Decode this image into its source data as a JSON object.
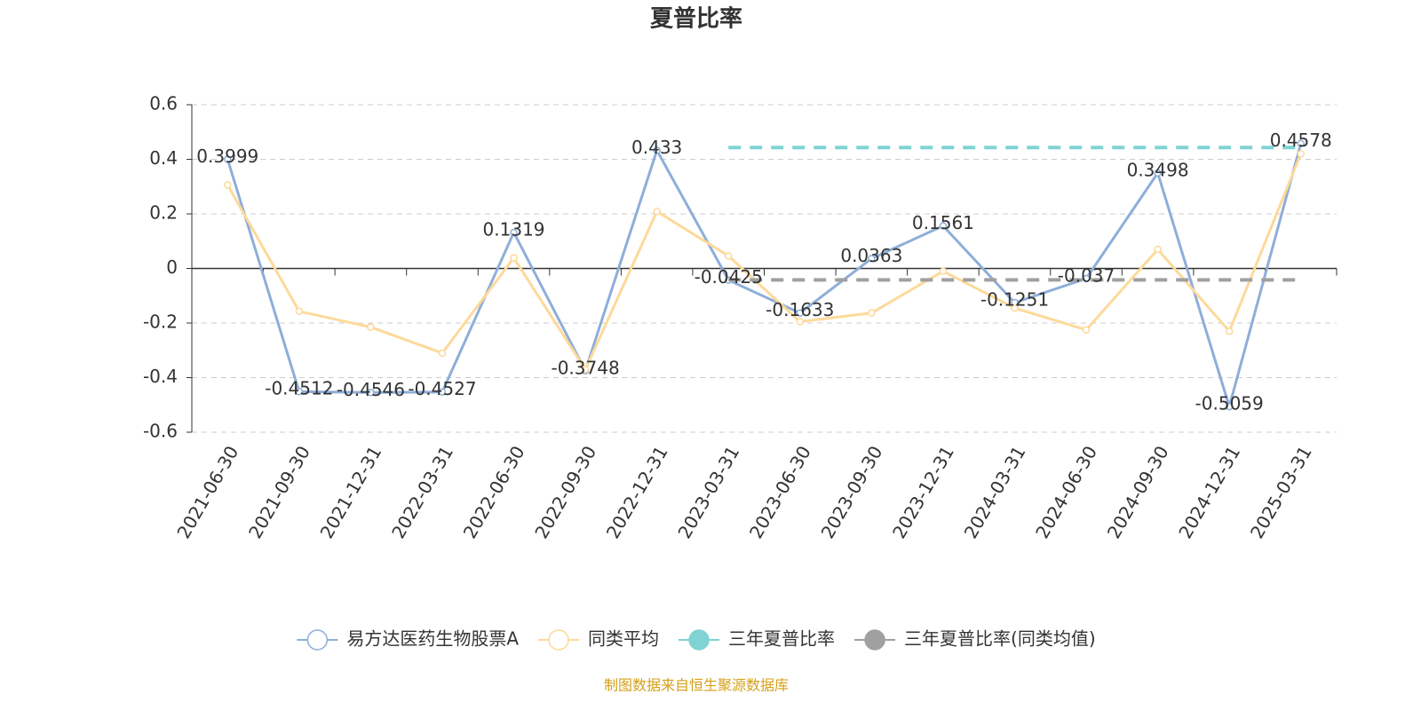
{
  "chart_data": {
    "type": "line",
    "title": "夏普比率",
    "categories": [
      "2021-06-30",
      "2021-09-30",
      "2021-12-31",
      "2022-03-31",
      "2022-06-30",
      "2022-09-30",
      "2022-12-31",
      "2023-03-31",
      "2023-06-30",
      "2023-09-30",
      "2023-12-31",
      "2024-03-31",
      "2024-06-30",
      "2024-09-30",
      "2024-12-31",
      "2025-03-31"
    ],
    "series": [
      {
        "name": "易方达医药生物股票A",
        "color": "#8eaed9",
        "dashed": false,
        "show_labels": true,
        "values": [
          0.3999,
          -0.4512,
          -0.4546,
          -0.4527,
          0.1319,
          -0.3748,
          0.433,
          -0.0425,
          -0.1633,
          0.0363,
          0.1561,
          -0.1251,
          -0.037,
          0.3498,
          -0.5059,
          0.4578
        ]
      },
      {
        "name": "同类平均",
        "color": "#fdd99a",
        "dashed": false,
        "show_labels": false,
        "values": [
          0.306,
          -0.157,
          -0.215,
          -0.31,
          0.039,
          -0.37,
          0.209,
          0.046,
          -0.195,
          -0.163,
          -0.01,
          -0.145,
          -0.225,
          0.07,
          -0.23,
          0.42
        ]
      },
      {
        "name": "三年夏普比率",
        "color": "#7fd3d3",
        "dashed": true,
        "show_labels": false,
        "values": [
          null,
          null,
          null,
          null,
          null,
          null,
          null,
          0.443,
          0.443,
          0.443,
          0.443,
          0.443,
          0.443,
          0.443,
          0.443,
          0.443
        ]
      },
      {
        "name": "三年夏普比率(同类均值)",
        "color": "#a0a0a0",
        "dashed": true,
        "show_labels": false,
        "values": [
          null,
          null,
          null,
          null,
          null,
          null,
          null,
          -0.042,
          -0.042,
          -0.042,
          -0.042,
          -0.042,
          -0.042,
          -0.042,
          -0.042,
          -0.042
        ]
      }
    ],
    "ylim": [
      -0.6,
      0.6
    ],
    "yticks": [
      -0.6,
      -0.4,
      -0.2,
      0,
      0.2,
      0.4,
      0.6
    ],
    "grid": true,
    "legend": "bottom",
    "source": "制图数据来自恒生聚源数据库"
  }
}
